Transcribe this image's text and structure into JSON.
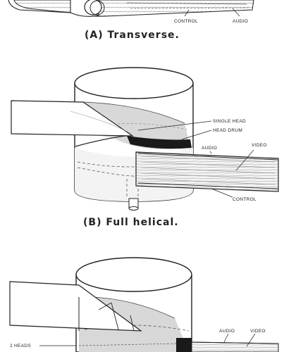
{
  "panels": [
    {
      "caption": "(A) Transverse.",
      "labels": {
        "control": "CONTROL",
        "audio": "AUDIO"
      }
    },
    {
      "caption": "(B) Full helical.",
      "labels": {
        "single_head": "SINGLE HEAD",
        "head_drum": "HEAD DRUM",
        "audio": "AUDIO",
        "video": "VIDEO",
        "control": "CONTROL"
      }
    },
    {
      "caption": "",
      "labels": {
        "heads": "2 HEADS",
        "audio": "AUDIO",
        "video": "VIDEO"
      }
    }
  ]
}
